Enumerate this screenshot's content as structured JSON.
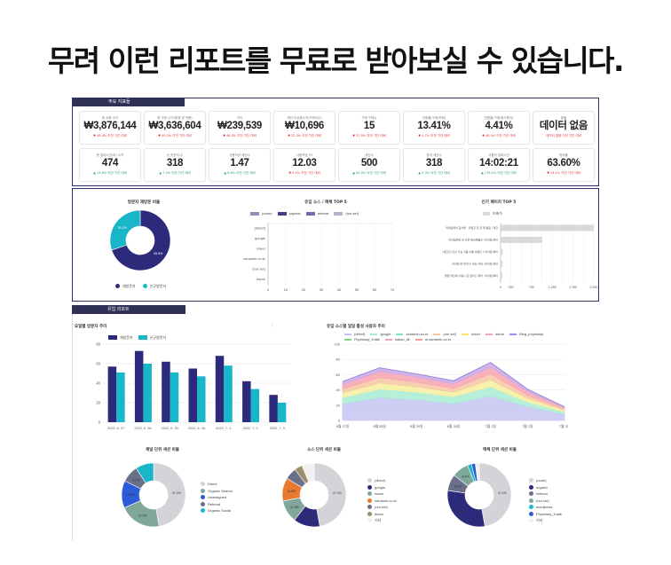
{
  "headline": "무려 이런 리포트를 무료로 받아보실 수 있습니다.",
  "panel1": {
    "tab": "주요 지표들",
    "kpis": [
      {
        "label": "총 상품 수익",
        "value": "₩3,876,144",
        "change": "▼ 48.0% 이전 기간 대비",
        "up": false
      },
      {
        "label": "총 주문 수익(환경 및 적용)",
        "value": "₩3,636,604",
        "change": "▼ 49.3% 이전 기간 대비",
        "up": false
      },
      {
        "label": "이익",
        "value": "₩239,539",
        "change": "▼ 46.0% 이전 기간 대비",
        "up": false
      },
      {
        "label": "객단가(상품수익/구매자수)",
        "value": "₩10,696",
        "change": "▼ 32.3% 이전 기간 대비",
        "up": false
      },
      {
        "label": "구매 구매수",
        "value": "15",
        "change": "▼ 37.5% 이전 기간 대비",
        "up": false
      },
      {
        "label": "전환율(구매/조회)",
        "value": "13.41%",
        "change": "▼ 4.7% 이전 기간 대비",
        "up": false
      },
      {
        "label": "전환율(구매/총사용자)",
        "value": "4.41%",
        "change": "▼ 46.4% 이전 기간 대비",
        "up": false
      },
      {
        "label": "환불",
        "value": "데이터 없음",
        "change": "데이터 없음 이전 기간 대비",
        "up": false
      },
      {
        "label": "총 참여시간(초) 수익",
        "value": "474",
        "change": "▲ 14.8% 이전 기간 대비",
        "up": true
      },
      {
        "label": "순 방문자 수",
        "value": "318",
        "change": "▲ 7.4% 이전 기간 대비",
        "up": true
      },
      {
        "label": "사용자당 세션수",
        "value": "1.47",
        "change": "▲ 6.6% 이전 기간 대비",
        "up": true
      },
      {
        "label": "사용자당 PV",
        "value": "12.03",
        "change": "▼ 0.1% 이전 기간 대비",
        "up": false
      },
      {
        "label": "세션수",
        "value": "500",
        "change": "▲ 20.0% 이전 기간 대비",
        "up": true
      },
      {
        "label": "참여 세션수",
        "value": "318",
        "change": "▲ 5.3% 이전 기간 대비",
        "up": true
      },
      {
        "label": "사용자 참여시간",
        "value": "14:02:21",
        "change": "▲ 176.2% 이전 기간 대비",
        "up": true
      },
      {
        "label": "참여율",
        "value": "63.60%",
        "change": "▼ 14.1% 이전 기간 대비",
        "up": false
      }
    ]
  },
  "panel2": {
    "donut_title": "방문자 재방문 비율",
    "donut_legend": [
      "재방문자",
      "신규방문자"
    ],
    "donut_labels": [
      "30.2%",
      "69.8%"
    ],
    "bar_title": "유입 소스 / 매체 TOP 5",
    "bar_legend": [
      "(none)",
      "organic",
      "referral",
      "(not set)"
    ],
    "bar_categories": [
      "(direct)",
      "google",
      "naver",
      "sanamin.co.kr",
      "(not set)",
      "daum"
    ],
    "bar_xticks": [
      "0",
      "10",
      "20",
      "30",
      "40",
      "50",
      "60",
      "70"
    ],
    "pages_title": "인기 페이지 TOP 5",
    "pages_legend": "조회수",
    "pages_categories": [
      "마이팀페어 공식몰 - 과일한 잔 한 제 통증 / 혁한 무렴 건 될라드 페어",
      "마이팀페어 한 다른 페인제품리 | 마이팀 페어",
      "[제한진] 건강 기능 식품 이름 이벤트 1.마이팀 페어",
      "마이팀 은 탄력 수 있는 카대 | 마이팀 페어",
      "혈행 개선에 사용니 관 일리드 페어 : 마이팀 페어"
    ],
    "pages_xticks": [
      "0",
      "250",
      "500",
      "750",
      "1,000",
      "1,250",
      "1,500",
      "1,750",
      "2,000",
      "2,250"
    ]
  },
  "section_tab": "유입 리포트",
  "weekly": {
    "title": "요일별 방문자 추이",
    "legend": [
      "재방문자",
      "신규방문자"
    ],
    "categories": [
      "2022. 6. 27.",
      "2022. 6. 28.",
      "2022. 6. 29.",
      "2022. 6. 30.",
      "2022. 7. 1.",
      "2022. 7. 2.",
      "2022. 7. 3."
    ],
    "yticks": [
      "0",
      "20",
      "40",
      "60",
      "80"
    ]
  },
  "area": {
    "title": "유입 소스별 일일 활성 사용자 추이",
    "legend": [
      "(direct)",
      "google",
      "sanamin.co.kr",
      "(not set)",
      "naver",
      "daum",
      "Blog_phytoway",
      "Phytoway_lt.talk",
      "kakao_tlk",
      "m.sanamin.co.kr"
    ],
    "x": [
      "6월 27일",
      "6월 28일",
      "6월 29일",
      "6월 30일",
      "7월 1일",
      "7월 2일",
      "7월 3일"
    ],
    "yticks": [
      "0",
      "20",
      "40",
      "60",
      "80",
      "100"
    ]
  },
  "pies": [
    {
      "title": "채널 단위 세션 비율",
      "legend": [
        "Direct",
        "Organic Search",
        "Unassigned",
        "Referral",
        "Organic Social"
      ],
      "labels": [
        "47.2%",
        "21.2%",
        "13.8%",
        "8.6%"
      ]
    },
    {
      "title": "소스 단위 세션 비율",
      "legend": [
        "(direct)",
        "google",
        "naver",
        "sanamin.co.kr",
        "(not set)",
        "daum",
        "기타"
      ],
      "labels": [
        "47.2%",
        "13.4%",
        "11.3%",
        "11.8%"
      ]
    },
    {
      "title": "매체 단위 세션 비율",
      "legend": [
        "(none)",
        "organic",
        "referral",
        "(not set)",
        "wordpress",
        "Phytoway_lt.talk",
        "기타"
      ],
      "labels": [
        "47.2%",
        "30.0%",
        "8.4%",
        "8.4%"
      ]
    }
  ],
  "chart_data": [
    {
      "type": "bar",
      "title": "요일별 방문자 추이",
      "categories": [
        "2022. 6. 27.",
        "2022. 6. 28.",
        "2022. 6. 29.",
        "2022. 6. 30.",
        "2022. 7. 1.",
        "2022. 7. 2.",
        "2022. 7. 3."
      ],
      "series": [
        {
          "name": "재방문자",
          "values": [
            57,
            73,
            62,
            55,
            68,
            42,
            28
          ],
          "color": "#2c2a7a"
        },
        {
          "name": "신규방문자",
          "values": [
            51,
            60,
            51,
            47,
            58,
            34,
            20
          ],
          "color": "#18b6c8"
        }
      ],
      "ylim": [
        0,
        80
      ],
      "grid": true
    },
    {
      "type": "area",
      "title": "유입 소스별 일일 활성 사용자 추이",
      "x": [
        "6월 27일",
        "6월 28일",
        "6월 29일",
        "6월 30일",
        "7월 1일",
        "7월 2일",
        "7월 3일"
      ],
      "series": [
        {
          "name": "(direct)",
          "values": [
            22,
            30,
            27,
            22,
            32,
            18,
            8
          ],
          "color": "#c5c5f2"
        },
        {
          "name": "google",
          "values": [
            8,
            11,
            10,
            9,
            12,
            6,
            3
          ],
          "color": "#a8ecd3"
        },
        {
          "name": "sanamin.co.kr",
          "values": [
            6,
            8,
            7,
            6,
            9,
            5,
            2
          ],
          "color": "#f5f0a0"
        },
        {
          "name": "(not set)",
          "values": [
            5,
            7,
            6,
            5,
            8,
            4,
            2
          ],
          "color": "#f7c6a3"
        },
        {
          "name": "naver",
          "values": [
            6,
            8,
            7,
            6,
            9,
            5,
            2
          ],
          "color": "#f7a3b0"
        },
        {
          "name": "daum",
          "values": [
            4,
            5,
            4,
            4,
            6,
            3,
            1
          ],
          "color": "#c9a6e8"
        }
      ],
      "ylim": [
        0,
        100
      ],
      "grid": true
    },
    {
      "type": "bar",
      "title": "인기 페이지 TOP 5",
      "categories": [
        "마이팀페어 공식몰 - 과일한 잔 한 제 통증 / 혁한 무렴 건 될라드 페어",
        "마이팀페어 한 다른 페인제품리 | 마이팀 페어",
        "[제한진] 건강 기능 식품 이름 이벤트 1.마이팀 페어",
        "마이팀 은 탄력 수 있는 카대 | 마이팀 페어",
        "혈행 개선에 사용니 관 일리드 페어 : 마이팀 페어"
      ],
      "series": [
        {
          "name": "조회수",
          "values": [
            2250,
            1000,
            50,
            50,
            40
          ],
          "color": "#d9d9d9"
        }
      ],
      "xlim": [
        0,
        2250
      ]
    },
    {
      "type": "pie",
      "title": "방문자 재방문 비율",
      "categories": [
        "재방문자",
        "신규방문자"
      ],
      "values": [
        69.8,
        30.2
      ]
    },
    {
      "type": "pie",
      "title": "채널 단위 세션 비율",
      "categories": [
        "Direct",
        "Organic Search",
        "Unassigned",
        "Referral",
        "Organic Social"
      ],
      "values": [
        47.2,
        21.2,
        13.8,
        8.6,
        9.2
      ]
    },
    {
      "type": "pie",
      "title": "소스 단위 세션 비율",
      "categories": [
        "(direct)",
        "google",
        "naver",
        "sanamin.co.kr",
        "(not set)",
        "daum",
        "기타"
      ],
      "values": [
        47.2,
        13.4,
        11.3,
        11.8,
        6,
        4,
        6.3
      ]
    },
    {
      "type": "pie",
      "title": "매체 단위 세션 비율",
      "categories": [
        "(none)",
        "organic",
        "referral",
        "(not set)",
        "wordpress",
        "Phytoway_lt.talk",
        "기타"
      ],
      "values": [
        47.2,
        30.0,
        8.4,
        8.4,
        2,
        2,
        2
      ]
    }
  ]
}
